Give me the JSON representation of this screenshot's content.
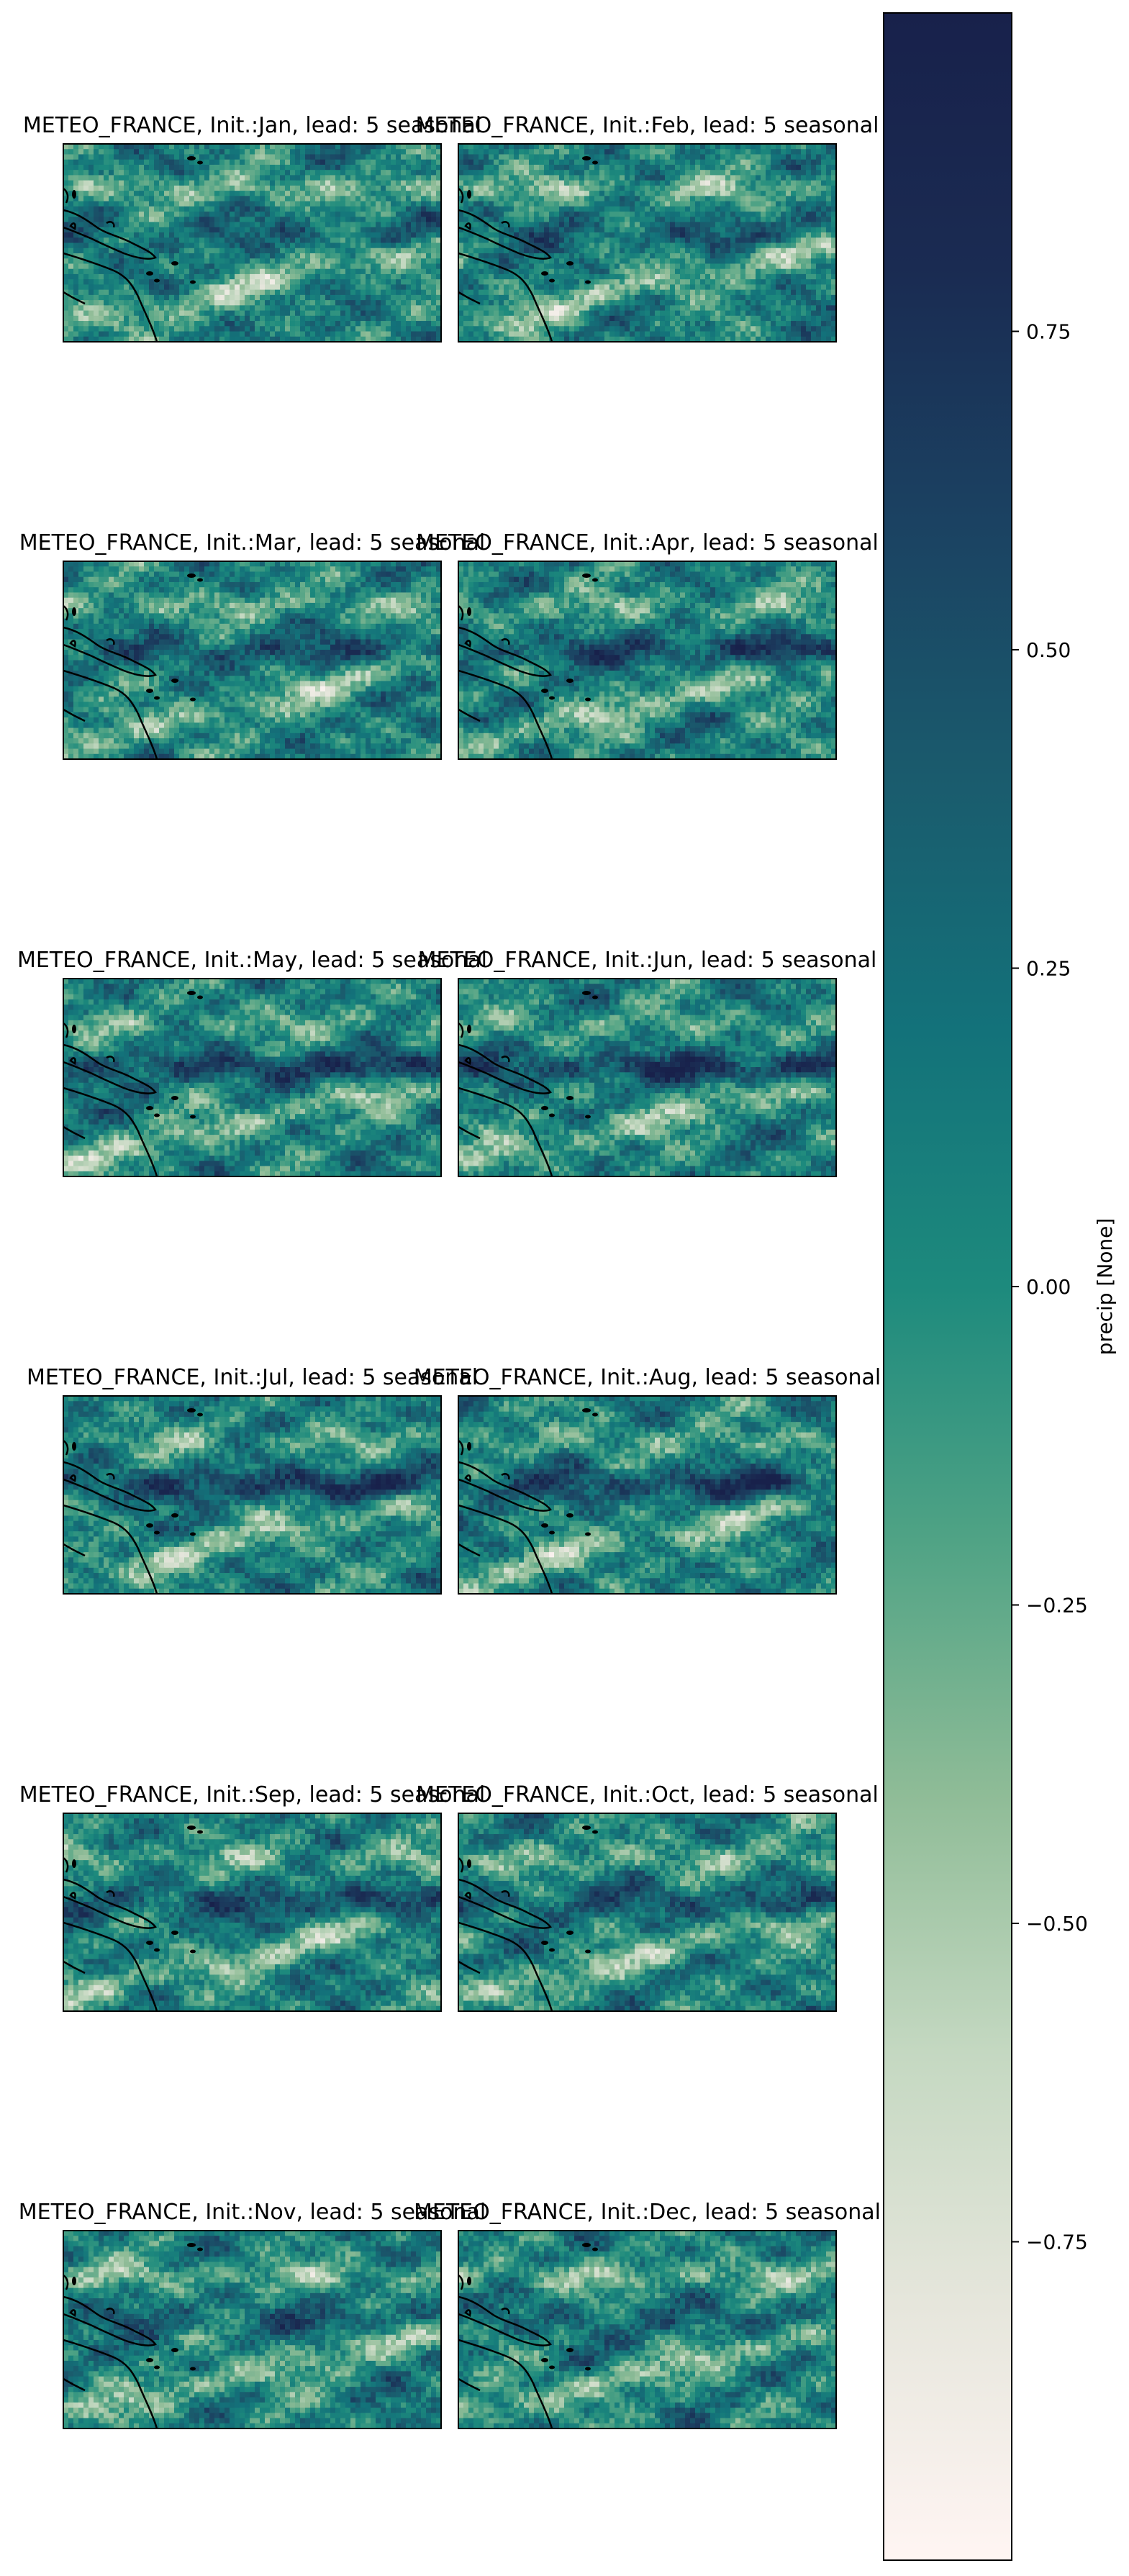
{
  "chart_data": {
    "type": "heatmap",
    "layout": {
      "rows": 6,
      "cols": 2
    },
    "panels": [
      {
        "title": "METEO_FRANCE, Init.:Jan, lead: 5 seasonal",
        "month": "Jan"
      },
      {
        "title": "METEO_FRANCE, Init.:Feb, lead: 5 seasonal",
        "month": "Feb"
      },
      {
        "title": "METEO_FRANCE, Init.:Mar, lead: 5 seasonal",
        "month": "Mar"
      },
      {
        "title": "METEO_FRANCE, Init.:Apr, lead: 5 seasonal",
        "month": "Apr"
      },
      {
        "title": "METEO_FRANCE, Init.:May, lead: 5 seasonal",
        "month": "May"
      },
      {
        "title": "METEO_FRANCE, Init.:Jun, lead: 5 seasonal",
        "month": "Jun"
      },
      {
        "title": "METEO_FRANCE, Init.:Jul, lead: 5 seasonal",
        "month": "Jul"
      },
      {
        "title": "METEO_FRANCE, Init.:Aug, lead: 5 seasonal",
        "month": "Aug"
      },
      {
        "title": "METEO_FRANCE, Init.:Sep, lead: 5 seasonal",
        "month": "Sep"
      },
      {
        "title": "METEO_FRANCE, Init.:Oct, lead: 5 seasonal",
        "month": "Oct"
      },
      {
        "title": "METEO_FRANCE, Init.:Nov, lead: 5 seasonal",
        "month": "Nov"
      },
      {
        "title": "METEO_FRANCE, Init.:Dec, lead: 5 seasonal",
        "month": "Dec"
      }
    ],
    "colorbar": {
      "label": "precip [None]",
      "range": [
        -1,
        1
      ],
      "ticks": [
        0.75,
        0.5,
        0.25,
        0.0,
        -0.25,
        -0.5,
        -0.75
      ],
      "tick_labels": [
        "0.75",
        "0.50",
        "0.25",
        "0.00",
        "−0.25",
        "−0.50",
        "−0.75"
      ],
      "colors": [
        "#fff5f3",
        "#e6e6dc",
        "#c4d8c1",
        "#8fbc97",
        "#50a385",
        "#1d8a7d",
        "#13727a",
        "#1a5b6d",
        "#1b4262",
        "#1a2b52",
        "#18214b"
      ]
    }
  }
}
